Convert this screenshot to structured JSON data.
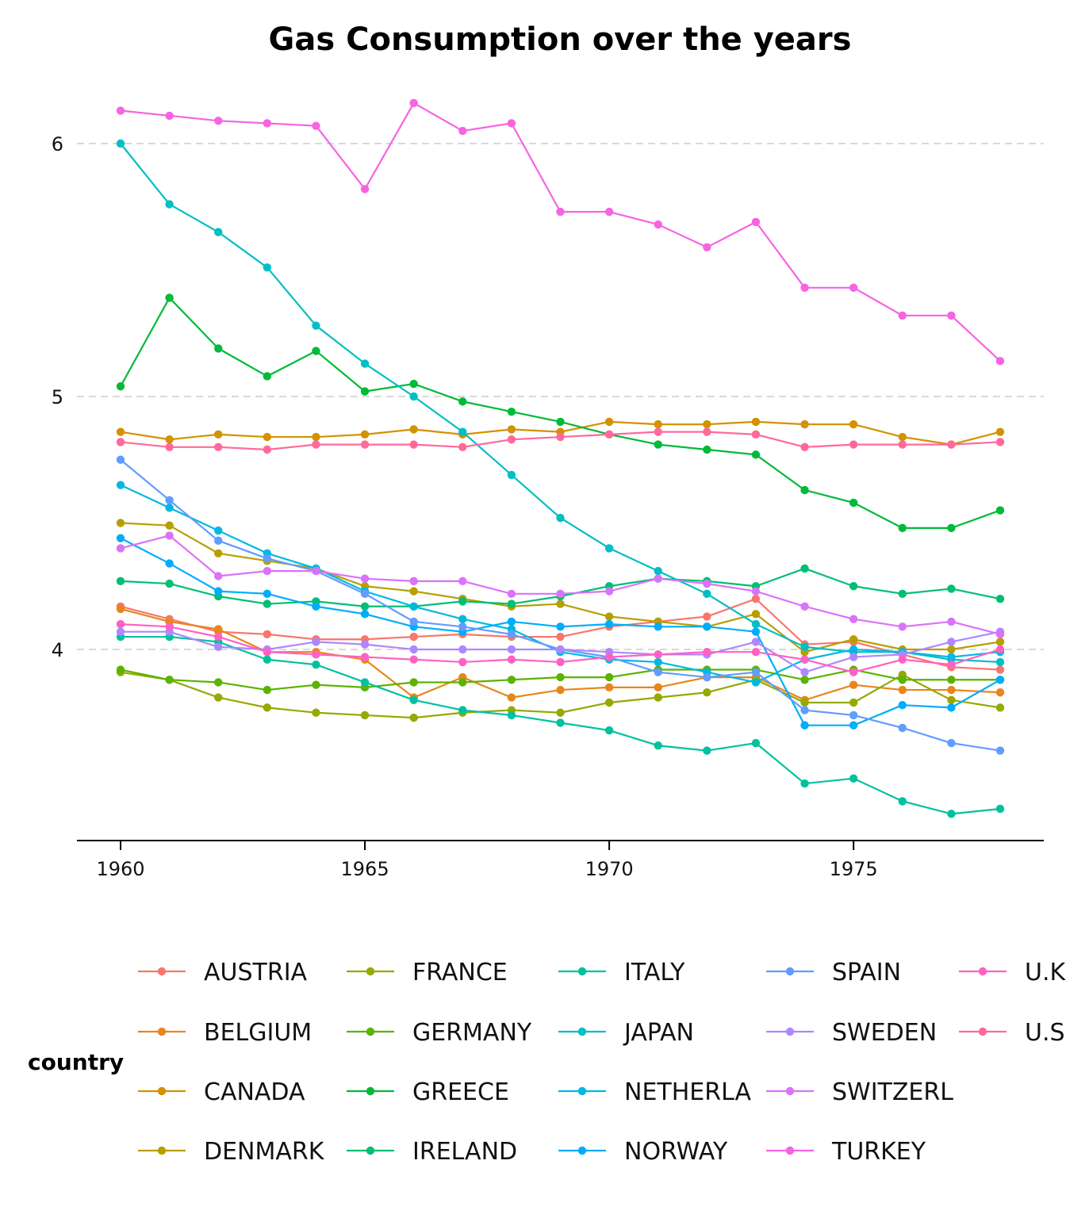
{
  "chart_data": {
    "type": "line",
    "title": "Gas Consumption over the years",
    "xlabel": "",
    "ylabel": "",
    "xlim": [
      1959.85,
      1978.15
    ],
    "ylim": [
      3.27,
      6.2
    ],
    "xticks": [
      1960,
      1965,
      1970,
      1975
    ],
    "yticks": [
      4,
      5,
      6
    ],
    "grid": "horizontal dashed major",
    "legend_title": "country",
    "legend_position": "bottom",
    "x": [
      1960,
      1961,
      1962,
      1963,
      1964,
      1965,
      1966,
      1967,
      1968,
      1969,
      1970,
      1971,
      1972,
      1973,
      1974,
      1975,
      1976,
      1977,
      1978
    ],
    "series": [
      {
        "name": "AUSTRIA",
        "color": "#F8766D",
        "values": [
          4.17,
          4.12,
          4.07,
          4.06,
          4.04,
          4.04,
          4.05,
          4.06,
          4.05,
          4.05,
          4.09,
          4.11,
          4.13,
          4.2,
          4.02,
          4.03,
          3.98,
          3.93,
          3.92
        ]
      },
      {
        "name": "BELGIUM",
        "color": "#E7861B",
        "values": [
          4.16,
          4.11,
          4.08,
          3.99,
          3.99,
          3.96,
          3.81,
          3.89,
          3.81,
          3.84,
          3.85,
          3.85,
          3.89,
          3.89,
          3.8,
          3.86,
          3.84,
          3.84,
          3.83
        ]
      },
      {
        "name": "CANADA",
        "color": "#D39200",
        "values": [
          4.86,
          4.83,
          4.85,
          4.84,
          4.84,
          4.85,
          4.87,
          4.85,
          4.87,
          4.86,
          4.9,
          4.89,
          4.89,
          4.9,
          4.89,
          4.89,
          4.84,
          4.81,
          4.86
        ]
      },
      {
        "name": "DENMARK",
        "color": "#B79F00",
        "values": [
          4.5,
          4.49,
          4.38,
          4.35,
          4.32,
          4.25,
          4.23,
          4.2,
          4.17,
          4.18,
          4.13,
          4.11,
          4.09,
          4.14,
          3.99,
          4.04,
          4.0,
          4.0,
          4.03
        ]
      },
      {
        "name": "FRANCE",
        "color": "#95A900",
        "values": [
          3.91,
          3.88,
          3.81,
          3.77,
          3.75,
          3.74,
          3.73,
          3.75,
          3.76,
          3.75,
          3.79,
          3.81,
          3.83,
          3.88,
          3.79,
          3.79,
          3.9,
          3.8,
          3.77
        ]
      },
      {
        "name": "GERMANY",
        "color": "#5BB300",
        "values": [
          3.92,
          3.88,
          3.87,
          3.84,
          3.86,
          3.85,
          3.87,
          3.87,
          3.88,
          3.89,
          3.89,
          3.92,
          3.92,
          3.92,
          3.88,
          3.92,
          3.88,
          3.88,
          3.88
        ]
      },
      {
        "name": "GREECE",
        "color": "#00BA38",
        "values": [
          5.04,
          5.39,
          5.19,
          5.08,
          5.18,
          5.02,
          5.05,
          4.98,
          4.94,
          4.9,
          4.85,
          4.81,
          4.79,
          4.77,
          4.63,
          4.58,
          4.48,
          4.48,
          4.55
        ]
      },
      {
        "name": "IRELAND",
        "color": "#00BF74",
        "values": [
          4.27,
          4.26,
          4.21,
          4.18,
          4.19,
          4.17,
          4.17,
          4.19,
          4.18,
          4.21,
          4.25,
          4.28,
          4.27,
          4.25,
          4.32,
          4.25,
          4.22,
          4.24,
          4.2
        ]
      },
      {
        "name": "ITALY",
        "color": "#00C19F",
        "values": [
          4.05,
          4.05,
          4.03,
          3.96,
          3.94,
          3.87,
          3.8,
          3.76,
          3.74,
          3.71,
          3.68,
          3.62,
          3.6,
          3.63,
          3.47,
          3.49,
          3.4,
          3.35,
          3.37
        ]
      },
      {
        "name": "JAPAN",
        "color": "#00BFC4",
        "values": [
          6.0,
          5.76,
          5.65,
          5.51,
          5.28,
          5.13,
          5.0,
          4.86,
          4.69,
          4.52,
          4.4,
          4.31,
          4.22,
          4.1,
          4.01,
          3.99,
          3.99,
          3.96,
          3.95
        ]
      },
      {
        "name": "NETHERLA",
        "color": "#00B9E3",
        "values": [
          4.65,
          4.56,
          4.47,
          4.38,
          4.32,
          4.23,
          4.17,
          4.12,
          4.08,
          3.99,
          3.96,
          3.95,
          3.91,
          3.87,
          3.96,
          4.0,
          3.99,
          3.97,
          3.99
        ]
      },
      {
        "name": "NORWAY",
        "color": "#00ADFA",
        "values": [
          4.44,
          4.34,
          4.23,
          4.22,
          4.17,
          4.14,
          4.09,
          4.07,
          4.11,
          4.09,
          4.1,
          4.09,
          4.09,
          4.07,
          3.7,
          3.7,
          3.78,
          3.77,
          3.88
        ]
      },
      {
        "name": "SPAIN",
        "color": "#619CFF",
        "values": [
          4.75,
          4.59,
          4.43,
          4.36,
          4.31,
          4.22,
          4.11,
          4.09,
          4.06,
          4.0,
          3.97,
          3.91,
          3.89,
          3.91,
          3.76,
          3.74,
          3.69,
          3.63,
          3.6
        ]
      },
      {
        "name": "SWEDEN",
        "color": "#AE87FF",
        "values": [
          4.07,
          4.07,
          4.01,
          4.0,
          4.03,
          4.02,
          4.0,
          4.0,
          4.0,
          4.0,
          3.99,
          3.98,
          3.98,
          4.03,
          3.91,
          3.97,
          3.98,
          4.03,
          4.07
        ]
      },
      {
        "name": "SWITZERL",
        "color": "#DB72FB",
        "values": [
          4.4,
          4.45,
          4.29,
          4.31,
          4.31,
          4.28,
          4.27,
          4.27,
          4.22,
          4.22,
          4.23,
          4.28,
          4.26,
          4.23,
          4.17,
          4.12,
          4.09,
          4.11,
          4.06
        ]
      },
      {
        "name": "TURKEY",
        "color": "#F564E3",
        "values": [
          6.13,
          6.11,
          6.09,
          6.08,
          6.07,
          5.82,
          6.16,
          6.05,
          6.08,
          5.73,
          5.73,
          5.68,
          5.59,
          5.69,
          5.43,
          5.43,
          5.32,
          5.32,
          5.14
        ]
      },
      {
        "name": "U.K.",
        "color": "#FF61C3",
        "values": [
          4.1,
          4.09,
          4.05,
          3.99,
          3.98,
          3.97,
          3.96,
          3.95,
          3.96,
          3.95,
          3.97,
          3.98,
          3.99,
          3.99,
          3.96,
          3.91,
          3.96,
          3.94,
          4.0
        ]
      },
      {
        "name": "U.S.A.",
        "color": "#FF699C",
        "values": [
          4.82,
          4.8,
          4.8,
          4.79,
          4.81,
          4.81,
          4.81,
          4.8,
          4.83,
          4.84,
          4.85,
          4.86,
          4.86,
          4.85,
          4.8,
          4.81,
          4.81,
          4.81,
          4.82
        ]
      }
    ]
  },
  "legend_labels": [
    "AUSTRIA",
    "BELGIUM",
    "CANADA",
    "DENMARK",
    "FRANCE",
    "GERMANY",
    "GREECE",
    "IRELAND",
    "ITALY",
    "JAPAN",
    "NETHERLA",
    "NORWAY",
    "SPAIN",
    "SWEDEN",
    "SWITZERL",
    "TURKEY",
    "U.K.",
    "U.S.A."
  ]
}
